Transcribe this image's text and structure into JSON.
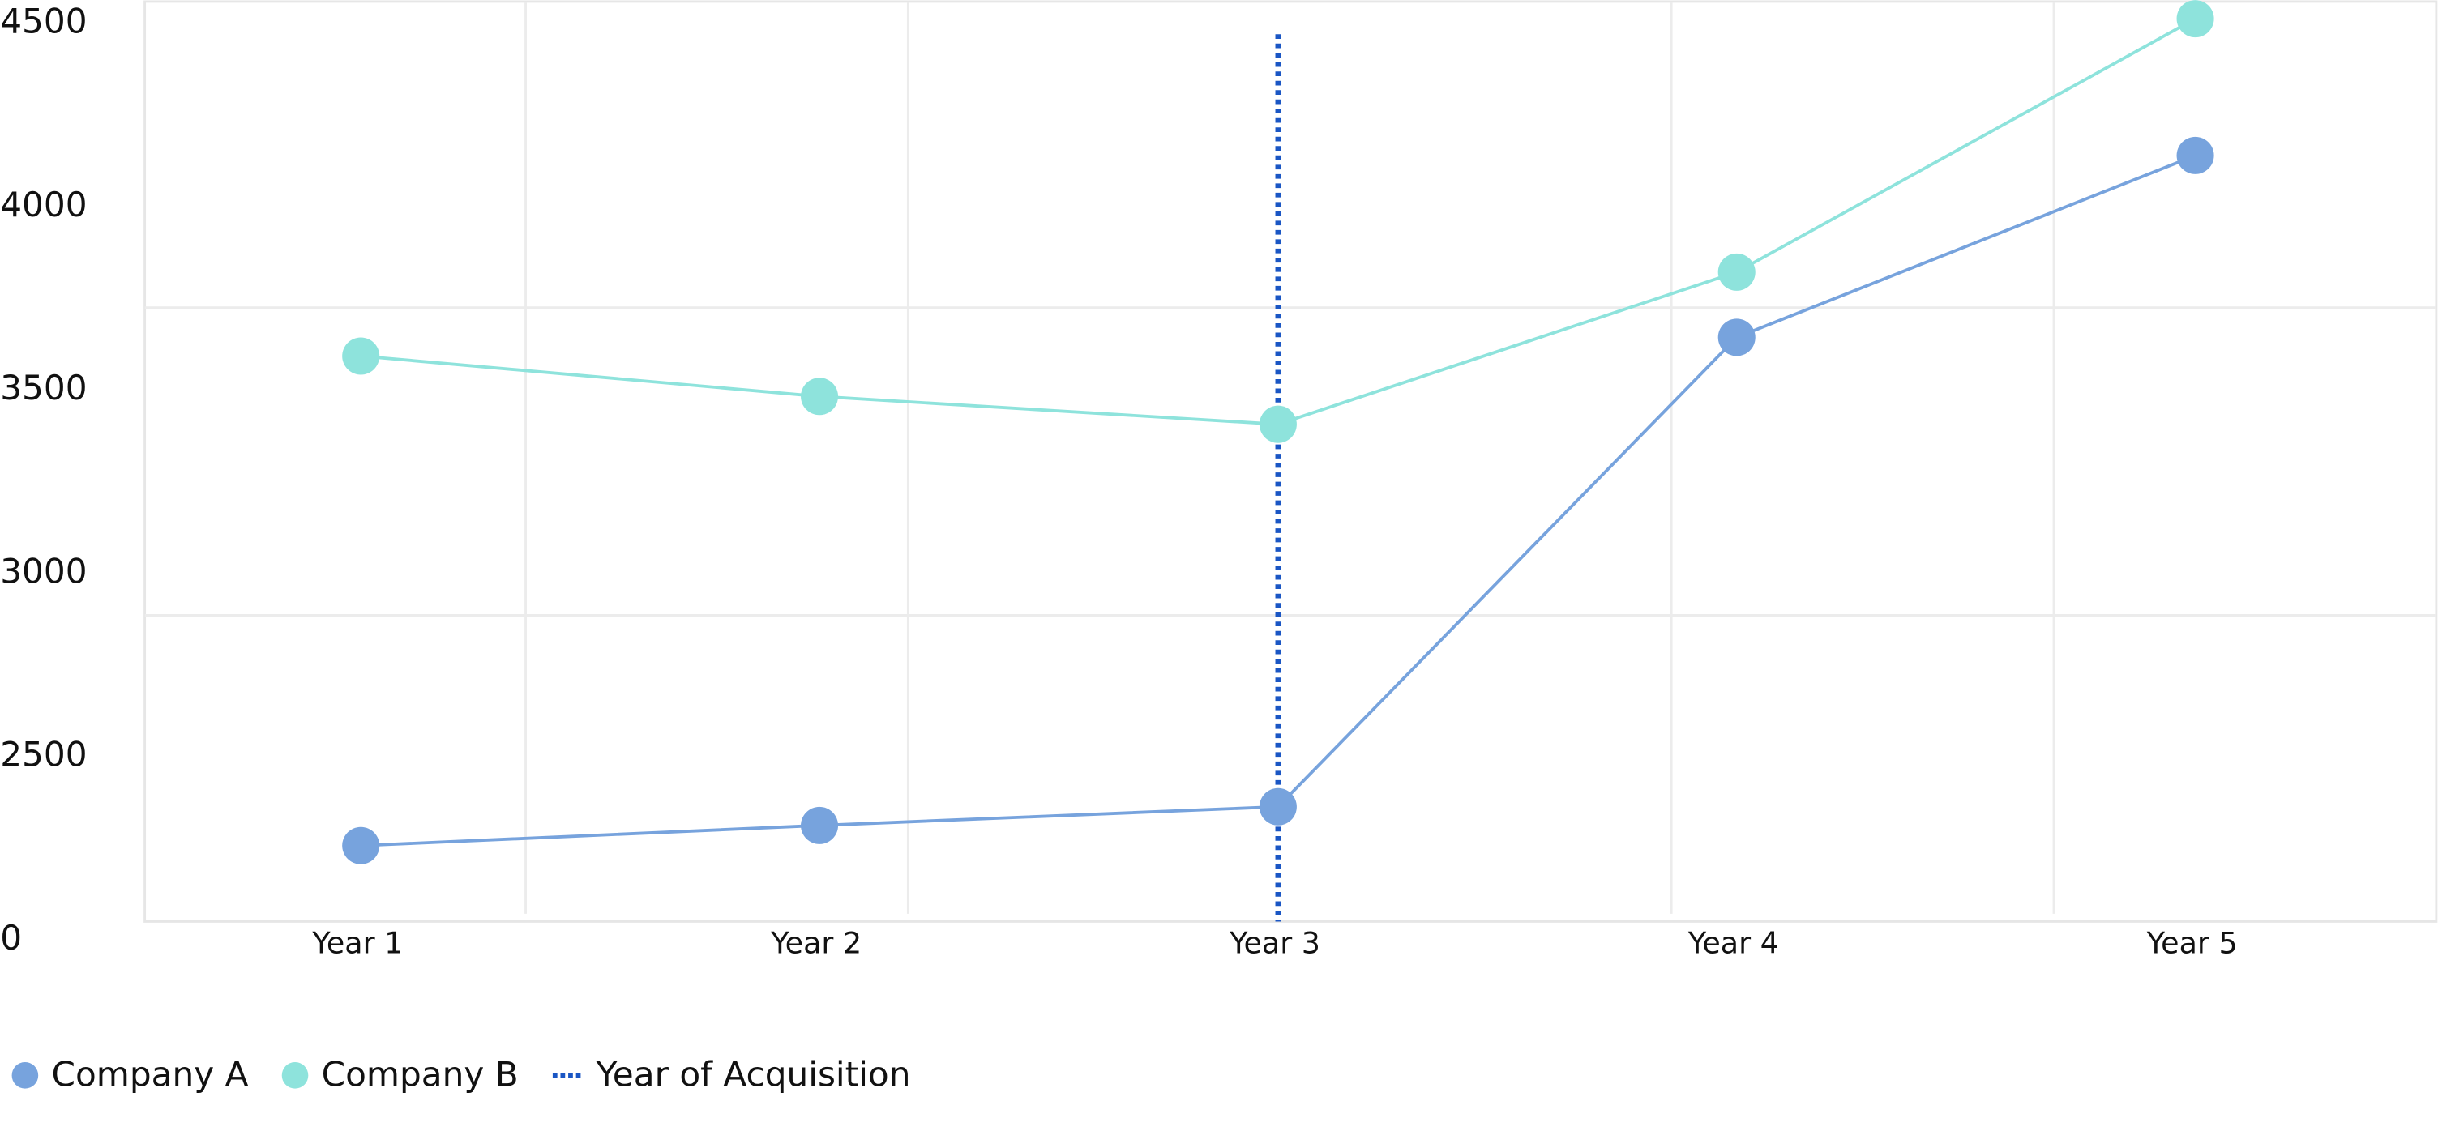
{
  "chart_data": {
    "type": "line",
    "categories": [
      "Year 1",
      "Year 2",
      "Year 3",
      "Year 4",
      "Year 5"
    ],
    "series": [
      {
        "name": "Company A",
        "color": "#77a3dd",
        "values": [
          2258,
          2313,
          2364,
          3644,
          4140
        ]
      },
      {
        "name": "Company B",
        "color": "#8ee3dc",
        "values": [
          3593,
          3483,
          3407,
          3822,
          4513
        ]
      }
    ],
    "marker_line": {
      "name": "Year of Acquisition",
      "category": "Year 3",
      "color": "#1a56c4"
    },
    "ylim": [
      2051,
      4564
    ],
    "yticks": [
      4500,
      4000,
      3500,
      3000,
      2500,
      {
        "value": 2000,
        "label": "0"
      }
    ],
    "y_gridlines": [
      3725,
      2886
    ],
    "legend": "bottom-left"
  }
}
